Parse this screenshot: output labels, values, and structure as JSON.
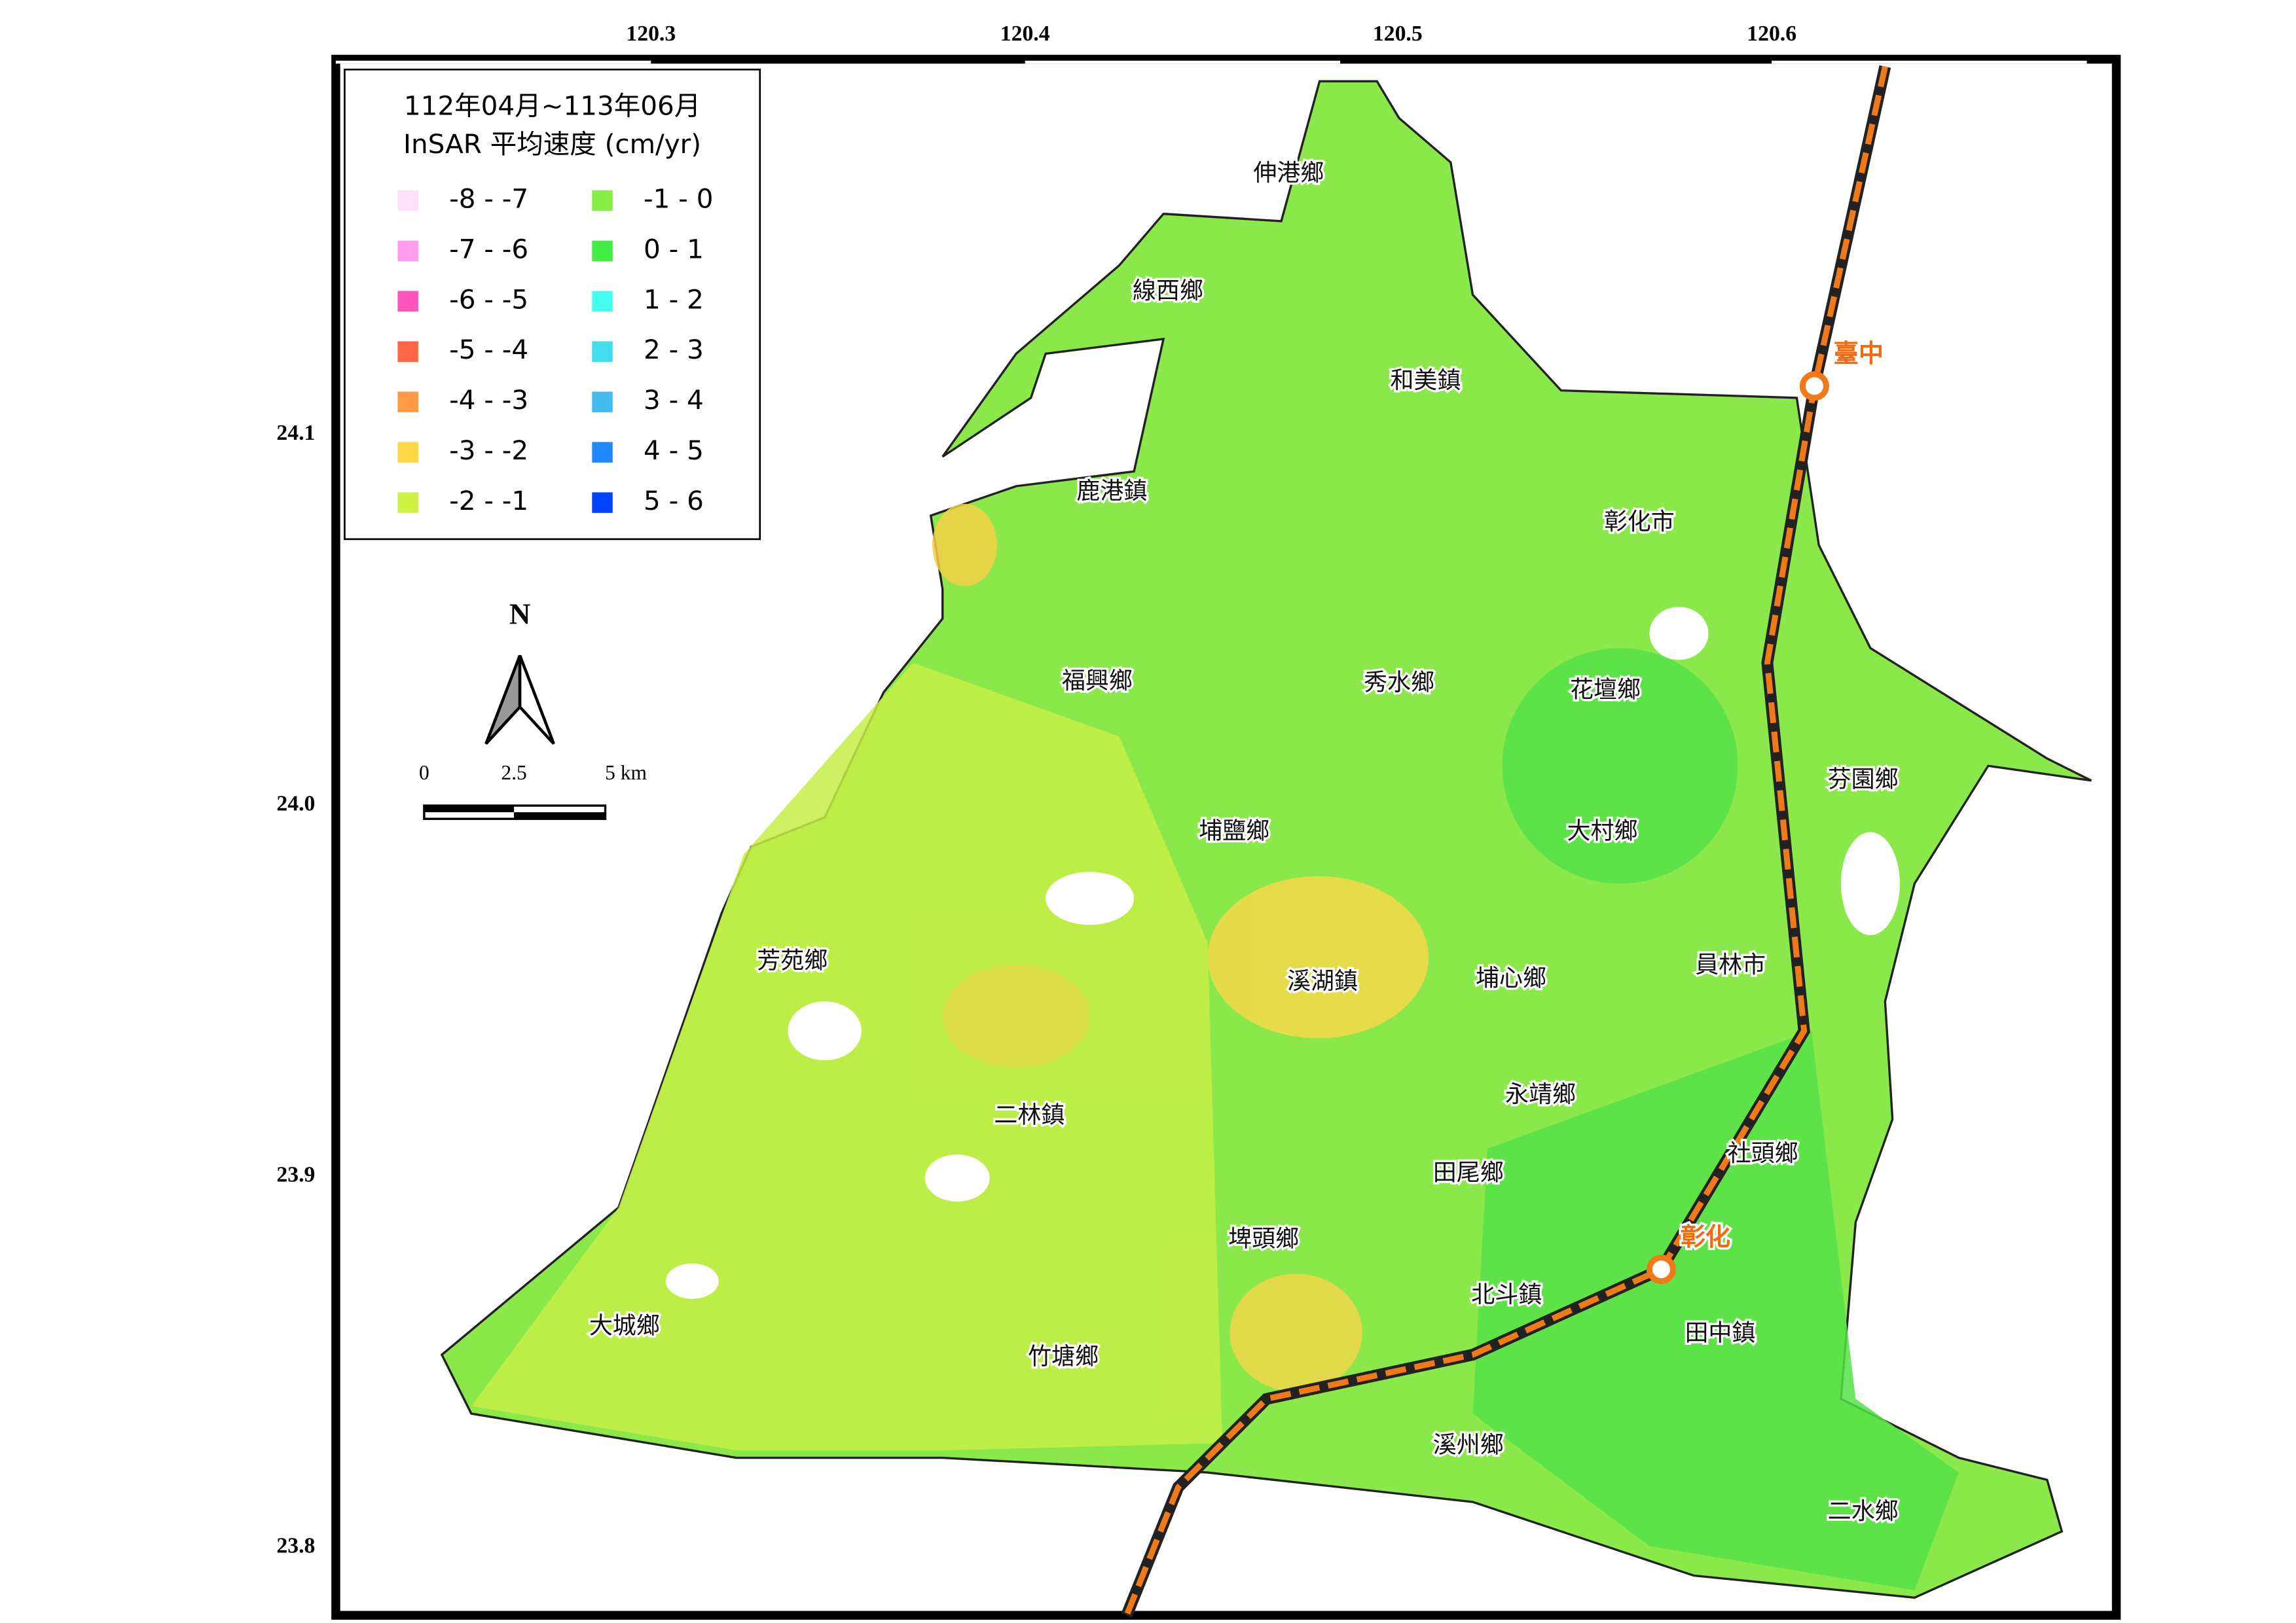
{
  "legend": {
    "title_line1": "112年04月~113年06月",
    "title_line2": "InSAR 平均速度 (cm/yr)",
    "items": [
      {
        "label": "-8 - -7",
        "color": "#ffe0fa"
      },
      {
        "label": "-7 - -6",
        "color": "#ff9cf0"
      },
      {
        "label": "-6 - -5",
        "color": "#ff55bb"
      },
      {
        "label": "-5 - -4",
        "color": "#ff6644"
      },
      {
        "label": "-4 - -3",
        "color": "#ff9944"
      },
      {
        "label": "-3 - -2",
        "color": "#ffd644"
      },
      {
        "label": "-2 - -1",
        "color": "#ccf244"
      },
      {
        "label": "-1 - 0",
        "color": "#88ee44"
      },
      {
        "label": "0 - 1",
        "color": "#44ee44"
      },
      {
        "label": "1 - 2",
        "color": "#44ffee"
      },
      {
        "label": "2 - 3",
        "color": "#44ddee"
      },
      {
        "label": "3 - 4",
        "color": "#44bbee"
      },
      {
        "label": "4 - 5",
        "color": "#2288ff"
      },
      {
        "label": "5 - 6",
        "color": "#0044ff"
      }
    ]
  },
  "lon_labels": [
    "120.3",
    "120.4",
    "120.5",
    "120.6"
  ],
  "lat_labels": [
    "24.1",
    "24.0",
    "23.9",
    "23.8"
  ],
  "north_label": "N",
  "scale_labels": [
    "0",
    "2.5",
    "5 km"
  ],
  "townships": [
    "伸港鄉",
    "線西鄉",
    "和美鎮",
    "鹿港鎮",
    "彰化市",
    "福興鄉",
    "秀水鄉",
    "花壇鄉",
    "芬園鄉",
    "埔鹽鄉",
    "大村鄉",
    "芳苑鄉",
    "溪湖鎮",
    "埔心鄉",
    "員林市",
    "永靖鄉",
    "二林鎮",
    "社頭鄉",
    "田尾鄉",
    "埤頭鄉",
    "北斗鎮",
    "田中鎮",
    "大城鄉",
    "竹塘鄉",
    "溪州鄉",
    "二水鄉"
  ],
  "stations": [
    "臺中",
    "彰化"
  ]
}
